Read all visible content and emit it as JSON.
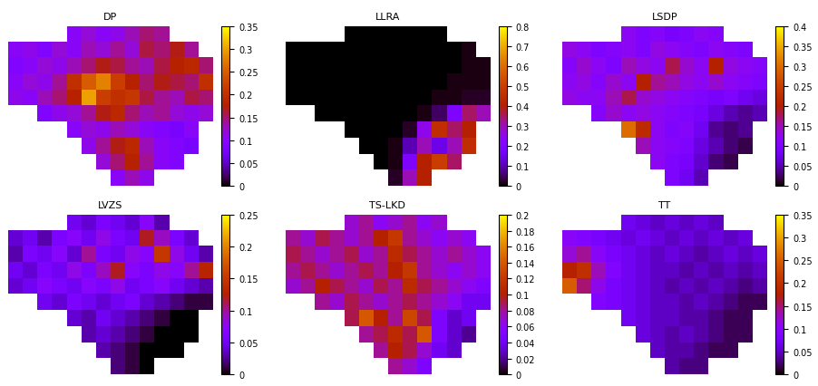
{
  "chart_data": [
    {
      "type": "heatmap",
      "title": "DP",
      "tick_labels": false,
      "color_range": [
        0,
        0.35
      ],
      "color_ticks": [
        0,
        0.05,
        0.1,
        0.15,
        0.2,
        0.25,
        0.3,
        0.35
      ],
      "cells": [
        [
          null,
          null,
          null,
          null,
          0.1,
          0.12,
          0.1,
          0.11,
          0.13,
          0.15,
          0.14,
          null,
          null,
          null
        ],
        [
          0.1,
          0.11,
          0.09,
          0.12,
          0.1,
          0.13,
          0.12,
          0.14,
          0.12,
          0.16,
          0.15,
          0.17,
          0.14,
          null
        ],
        [
          0.09,
          0.1,
          0.12,
          0.11,
          0.13,
          0.15,
          0.17,
          0.16,
          0.14,
          0.13,
          0.16,
          0.18,
          0.19,
          0.15
        ],
        [
          0.1,
          0.12,
          0.11,
          0.14,
          0.2,
          0.25,
          0.28,
          0.22,
          0.18,
          0.15,
          0.17,
          0.16,
          0.15,
          0.2
        ],
        [
          0.11,
          0.1,
          0.13,
          0.15,
          0.18,
          0.3,
          0.22,
          0.2,
          0.21,
          0.16,
          0.14,
          0.13,
          0.16,
          0.15
        ],
        [
          null,
          null,
          0.09,
          0.11,
          0.12,
          0.14,
          0.17,
          0.19,
          0.15,
          0.13,
          0.14,
          0.12,
          0.11,
          0.12
        ],
        [
          null,
          null,
          null,
          null,
          0.1,
          0.12,
          0.11,
          0.13,
          0.12,
          0.1,
          0.09,
          0.08,
          0.1,
          null
        ],
        [
          null,
          null,
          null,
          null,
          null,
          0.11,
          0.14,
          0.17,
          0.19,
          0.13,
          0.1,
          0.09,
          0.08,
          null
        ],
        [
          null,
          null,
          null,
          null,
          null,
          null,
          0.12,
          0.15,
          0.18,
          0.14,
          0.1,
          0.09,
          null,
          null
        ],
        [
          null,
          null,
          null,
          null,
          null,
          null,
          null,
          0.1,
          0.13,
          0.11,
          null,
          null,
          null,
          null
        ]
      ]
    },
    {
      "type": "heatmap",
      "title": "LLRA",
      "tick_labels": false,
      "color_range": [
        0,
        0.8
      ],
      "color_ticks": [
        0,
        0.1,
        0.2,
        0.3,
        0.4,
        0.5,
        0.6,
        0.7,
        0.8
      ],
      "cells": [
        [
          null,
          null,
          null,
          null,
          0,
          0,
          0,
          0,
          0,
          0,
          0,
          null,
          null,
          null
        ],
        [
          0,
          0,
          0,
          0,
          0,
          0,
          0,
          0,
          0,
          0,
          0,
          0,
          0.01,
          null
        ],
        [
          0,
          0,
          0,
          0,
          0,
          0,
          0,
          0,
          0,
          0,
          0,
          0,
          0.01,
          0.01
        ],
        [
          0,
          0,
          0,
          0,
          0,
          0,
          0,
          0,
          0,
          0,
          0,
          0.01,
          0.01,
          0.01
        ],
        [
          0,
          0,
          0,
          0,
          0,
          0,
          0,
          0,
          0,
          0,
          0.01,
          0.01,
          0.02,
          0.02
        ],
        [
          null,
          null,
          0,
          0,
          0,
          0,
          0,
          0,
          0,
          0.01,
          0.05,
          0.2,
          0.35,
          0.3
        ],
        [
          null,
          null,
          null,
          null,
          0,
          0,
          0,
          0,
          0.02,
          0.25,
          0.45,
          0.35,
          0.4,
          null
        ],
        [
          null,
          null,
          null,
          null,
          null,
          0,
          0,
          0.01,
          0.1,
          0.3,
          0.15,
          0.3,
          0.45,
          null
        ],
        [
          null,
          null,
          null,
          null,
          null,
          null,
          0,
          0.01,
          0.2,
          0.4,
          0.5,
          0.35,
          null,
          null
        ],
        [
          null,
          null,
          null,
          null,
          null,
          null,
          null,
          0.02,
          0.3,
          0.4,
          null,
          null,
          null,
          null
        ]
      ]
    },
    {
      "type": "heatmap",
      "title": "LSDP",
      "tick_labels": false,
      "color_range": [
        0,
        0.4
      ],
      "color_ticks": [
        0,
        0.05,
        0.1,
        0.15,
        0.2,
        0.25,
        0.3,
        0.35,
        0.4
      ],
      "cells": [
        [
          null,
          null,
          null,
          null,
          0.12,
          0.1,
          0.11,
          0.09,
          0.1,
          0.12,
          0.11,
          null,
          null,
          null
        ],
        [
          0.13,
          0.12,
          0.1,
          0.11,
          0.12,
          0.1,
          0.13,
          0.12,
          0.11,
          0.1,
          0.12,
          0.11,
          0.1,
          null
        ],
        [
          0.11,
          0.14,
          0.12,
          0.1,
          0.15,
          0.13,
          0.12,
          0.18,
          0.14,
          0.12,
          0.2,
          0.13,
          0.12,
          0.11
        ],
        [
          0.12,
          0.13,
          0.11,
          0.14,
          0.12,
          0.2,
          0.16,
          0.15,
          0.13,
          0.12,
          0.14,
          0.12,
          0.11,
          0.1
        ],
        [
          0.13,
          0.12,
          0.12,
          0.15,
          0.18,
          0.14,
          0.13,
          0.12,
          0.11,
          0.1,
          0.09,
          0.1,
          0.08,
          0.07
        ],
        [
          null,
          null,
          0.11,
          0.14,
          0.12,
          0.13,
          0.12,
          0.11,
          0.1,
          0.09,
          0.07,
          0.05,
          0.04,
          0.05
        ],
        [
          null,
          null,
          null,
          null,
          0.3,
          0.22,
          0.12,
          0.1,
          0.11,
          0.08,
          0.04,
          0.03,
          0.04,
          null
        ],
        [
          null,
          null,
          null,
          null,
          null,
          0.15,
          0.12,
          0.11,
          0.1,
          0.07,
          0.05,
          0.03,
          0.02,
          null
        ],
        [
          null,
          null,
          null,
          null,
          null,
          null,
          0.12,
          0.1,
          0.09,
          0.06,
          0.03,
          0.02,
          null,
          null
        ],
        [
          null,
          null,
          null,
          null,
          null,
          null,
          null,
          0.1,
          0.08,
          0.05,
          null,
          null,
          null,
          null
        ]
      ]
    },
    {
      "type": "heatmap",
      "title": "LVZS",
      "tick_labels": false,
      "color_range": [
        0,
        0.25
      ],
      "color_ticks": [
        0,
        0.05,
        0.1,
        0.15,
        0.2,
        0.25
      ],
      "cells": [
        [
          null,
          null,
          null,
          null,
          0.05,
          0.04,
          0.06,
          0.05,
          0.04,
          0.07,
          0.03,
          null,
          null,
          null
        ],
        [
          0.04,
          0.05,
          0.03,
          0.06,
          0.07,
          0.05,
          0.08,
          0.06,
          0.05,
          0.12,
          0.09,
          0.06,
          0.04,
          null
        ],
        [
          0.03,
          0.06,
          0.05,
          0.07,
          0.04,
          0.1,
          0.06,
          0.05,
          0.08,
          0.07,
          0.15,
          0.08,
          0.05,
          0.03
        ],
        [
          0.05,
          0.04,
          0.06,
          0.05,
          0.08,
          0.06,
          0.09,
          0.12,
          0.07,
          0.06,
          0.08,
          0.07,
          0.1,
          0.13
        ],
        [
          0.04,
          0.05,
          0.07,
          0.06,
          0.05,
          0.07,
          0.06,
          0.08,
          0.05,
          0.06,
          0.07,
          0.05,
          0.04,
          0.03
        ],
        [
          null,
          null,
          0.05,
          0.04,
          0.06,
          0.05,
          0.04,
          0.05,
          0.06,
          0.04,
          0.03,
          0.02,
          0.01,
          0.01
        ],
        [
          null,
          null,
          null,
          null,
          0.04,
          0.03,
          0.05,
          0.04,
          0.03,
          0.02,
          0.01,
          0,
          0,
          null
        ],
        [
          null,
          null,
          null,
          null,
          null,
          0.03,
          0.04,
          0.03,
          0.02,
          0.01,
          0,
          0,
          0,
          null
        ],
        [
          null,
          null,
          null,
          null,
          null,
          null,
          0.03,
          0.02,
          0.01,
          0,
          0,
          0,
          null,
          null
        ],
        [
          null,
          null,
          null,
          null,
          null,
          null,
          null,
          0.02,
          0.01,
          0,
          null,
          null,
          null,
          null
        ]
      ]
    },
    {
      "type": "heatmap",
      "title": "TS-LKD",
      "tick_labels": false,
      "color_range": [
        0,
        0.2
      ],
      "color_ticks": [
        0,
        0.02,
        0.04,
        0.06,
        0.08,
        0.1,
        0.12,
        0.14,
        0.16,
        0.18,
        0.2
      ],
      "cells": [
        [
          null,
          null,
          null,
          null,
          0.07,
          0.08,
          0.06,
          0.07,
          0.08,
          0.06,
          0.07,
          null,
          null,
          null
        ],
        [
          0.08,
          0.07,
          0.09,
          0.08,
          0.07,
          0.08,
          0.1,
          0.12,
          0.08,
          0.07,
          0.06,
          0.07,
          0.06,
          null
        ],
        [
          0.09,
          0.08,
          0.07,
          0.08,
          0.09,
          0.07,
          0.08,
          0.11,
          0.09,
          0.08,
          0.07,
          0.08,
          0.07,
          0.06
        ],
        [
          0.08,
          0.09,
          0.08,
          0.07,
          0.08,
          0.09,
          0.08,
          0.1,
          0.12,
          0.08,
          0.07,
          0.06,
          0.07,
          0.06
        ],
        [
          0.07,
          0.08,
          0.1,
          0.09,
          0.08,
          0.07,
          0.09,
          0.08,
          0.11,
          0.09,
          0.08,
          0.07,
          0.06,
          0.05
        ],
        [
          null,
          null,
          0.08,
          0.07,
          0.09,
          0.08,
          0.07,
          0.08,
          0.09,
          0.08,
          0.07,
          0.06,
          0.04,
          0.04
        ],
        [
          null,
          null,
          null,
          null,
          0.09,
          0.14,
          0.1,
          0.08,
          0.13,
          0.09,
          0.05,
          0.03,
          0.04,
          null
        ],
        [
          null,
          null,
          null,
          null,
          null,
          0.08,
          0.09,
          0.11,
          0.09,
          0.14,
          0.05,
          0.03,
          0.02,
          null
        ],
        [
          null,
          null,
          null,
          null,
          null,
          null,
          0.08,
          0.1,
          0.09,
          0.07,
          0.04,
          0.03,
          null,
          null
        ],
        [
          null,
          null,
          null,
          null,
          null,
          null,
          null,
          0.08,
          0.07,
          0.05,
          null,
          null,
          null,
          null
        ]
      ]
    },
    {
      "type": "heatmap",
      "title": "TT",
      "tick_labels": false,
      "color_range": [
        0,
        0.35
      ],
      "color_ticks": [
        0,
        0.05,
        0.1,
        0.15,
        0.2,
        0.25,
        0.3,
        0.35
      ],
      "cells": [
        [
          null,
          null,
          null,
          null,
          0.07,
          0.06,
          0.05,
          0.06,
          0.05,
          0.06,
          0.05,
          null,
          null,
          null
        ],
        [
          0.1,
          0.09,
          0.08,
          0.07,
          0.06,
          0.07,
          0.06,
          0.05,
          0.06,
          0.05,
          0.06,
          0.05,
          0.06,
          null
        ],
        [
          0.12,
          0.14,
          0.1,
          0.08,
          0.07,
          0.06,
          0.05,
          0.06,
          0.05,
          0.04,
          0.05,
          0.06,
          0.05,
          0.06
        ],
        [
          0.18,
          0.2,
          0.13,
          0.09,
          0.07,
          0.06,
          0.05,
          0.05,
          0.04,
          0.05,
          0.04,
          0.05,
          0.04,
          0.05
        ],
        [
          0.25,
          0.15,
          0.11,
          0.08,
          0.07,
          0.06,
          0.05,
          0.04,
          0.05,
          0.04,
          0.05,
          0.04,
          0.03,
          0.04
        ],
        [
          null,
          null,
          0.09,
          0.08,
          0.07,
          0.06,
          0.05,
          0.05,
          0.04,
          0.05,
          0.04,
          0.03,
          0.02,
          0.02
        ],
        [
          null,
          null,
          null,
          null,
          0.07,
          0.06,
          0.05,
          0.05,
          0.04,
          0.04,
          0.03,
          0.02,
          0.02,
          null
        ],
        [
          null,
          null,
          null,
          null,
          null,
          0.06,
          0.05,
          0.04,
          0.05,
          0.04,
          0.03,
          0.02,
          0.02,
          null
        ],
        [
          null,
          null,
          null,
          null,
          null,
          null,
          0.05,
          0.04,
          0.04,
          0.03,
          0.02,
          0.02,
          null,
          null
        ],
        [
          null,
          null,
          null,
          null,
          null,
          null,
          null,
          0.04,
          0.03,
          0.03,
          null,
          null,
          null,
          null
        ]
      ]
    }
  ]
}
